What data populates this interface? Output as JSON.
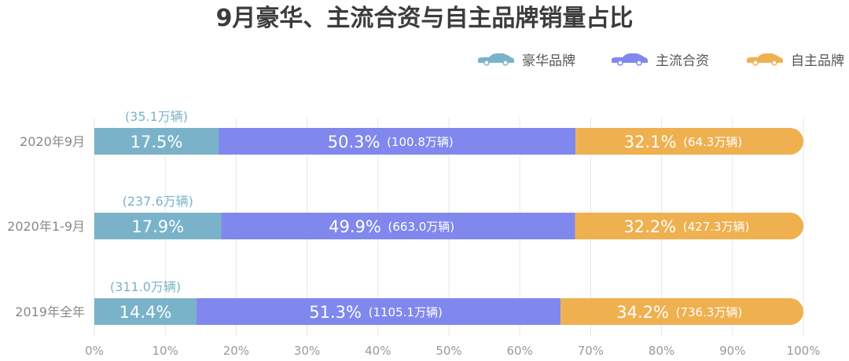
{
  "chart_data": {
    "type": "bar",
    "orientation": "horizontal",
    "stacked": "percent",
    "title": "9月豪华、主流合资与自主品牌销量占比",
    "categories": [
      "2020年9月",
      "2020年1-9月",
      "2019年全年"
    ],
    "series": [
      {
        "name": "豪华品牌",
        "color": "#7ab3c9",
        "values": [
          17.5,
          17.9,
          14.4
        ],
        "volume_labels": [
          "(35.1万辆)",
          "(237.6万辆)",
          "(311.0万辆)"
        ]
      },
      {
        "name": "主流合资",
        "color": "#8088ee",
        "values": [
          50.3,
          49.9,
          51.3
        ],
        "volume_labels": [
          "(100.8万辆)",
          "(663.0万辆)",
          "(1105.1万辆)"
        ]
      },
      {
        "name": "自主品牌",
        "color": "#efb050",
        "values": [
          32.1,
          32.2,
          34.2
        ],
        "volume_labels": [
          "(64.3万辆)",
          "(427.3万辆)",
          "(736.3万辆)"
        ]
      }
    ],
    "xlim": [
      0,
      100
    ],
    "xticks": [
      "0%",
      "10%",
      "20%",
      "30%",
      "40%",
      "50%",
      "60%",
      "70%",
      "80%",
      "90%",
      "100%"
    ],
    "value_unit": "%",
    "grid": true,
    "legend_position": "top-right",
    "legend_icon": "car-icon"
  }
}
